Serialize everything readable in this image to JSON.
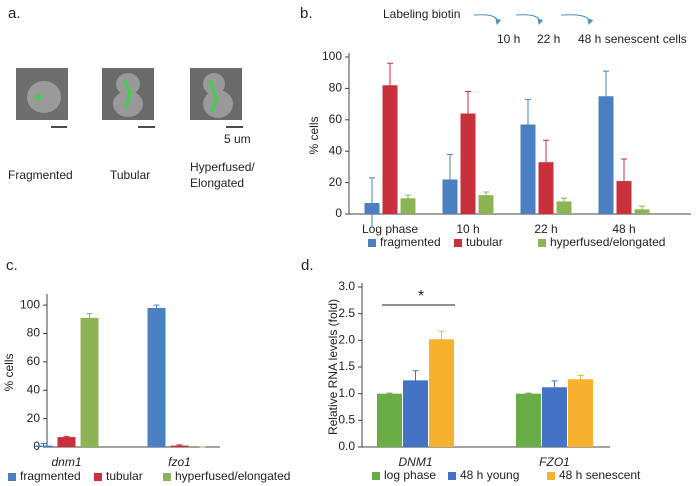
{
  "panel_a": {
    "label": "a.",
    "captions": [
      "Fragmented",
      "Tubular",
      "Hyperfused/",
      "Elongated"
    ],
    "scale_bar": "5 um"
  },
  "chart_data": [
    {
      "type": "bar",
      "panel_label": "b.",
      "ylabel": "% cells",
      "annotations": [
        "Labeling biotin",
        "10 h",
        "22 h",
        "48 h senescent cells"
      ],
      "categories": [
        "Log phase",
        "10 h",
        "22 h",
        "48 h"
      ],
      "series": [
        {
          "name": "fragmented",
          "color": "#4a7fc1",
          "values": [
            7,
            22,
            57,
            75
          ],
          "errors": [
            16,
            16,
            16,
            16
          ]
        },
        {
          "name": "tubular",
          "color": "#c8313c",
          "values": [
            82,
            64,
            33,
            21
          ],
          "errors": [
            14,
            14,
            14,
            14
          ]
        },
        {
          "name": "hyperfused/elongated",
          "color": "#8cb455",
          "values": [
            10,
            12,
            8,
            3
          ],
          "errors": [
            2,
            2,
            2,
            2
          ]
        }
      ],
      "ylim": [
        0,
        100
      ],
      "yticks": [
        0,
        20,
        40,
        60,
        80,
        100
      ]
    },
    {
      "type": "bar",
      "panel_label": "c.",
      "ylabel": "% cells",
      "categories": [
        "dnm1",
        "fzo1"
      ],
      "series": [
        {
          "name": "fragmented",
          "color": "#4a7fc1",
          "values": [
            1,
            98
          ],
          "errors": [
            1.5,
            2
          ]
        },
        {
          "name": "tubular",
          "color": "#c8313c",
          "values": [
            7,
            1
          ],
          "errors": [
            0.5,
            0.5
          ]
        },
        {
          "name": "hyperfused/elongated",
          "color": "#8cb455",
          "values": [
            91,
            0
          ],
          "errors": [
            3,
            0
          ]
        }
      ],
      "ylim": [
        0,
        105
      ],
      "yticks": [
        0,
        20,
        40,
        60,
        80,
        100
      ]
    },
    {
      "type": "bar",
      "panel_label": "d.",
      "ylabel": "Relative RNA levels (fold)",
      "annotations": [
        "*"
      ],
      "categories": [
        "DNM1",
        "FZO1"
      ],
      "series": [
        {
          "name": "log phase",
          "color": "#6aac46",
          "values": [
            1.0,
            1.0
          ],
          "errors": [
            0.01,
            0.01
          ]
        },
        {
          "name": "48 h young",
          "color": "#4472c4",
          "values": [
            1.25,
            1.12
          ],
          "errors": [
            0.18,
            0.12
          ]
        },
        {
          "name": "48 h senescent",
          "color": "#f7b12f",
          "values": [
            2.02,
            1.27
          ],
          "errors": [
            0.15,
            0.07
          ]
        }
      ],
      "ylim": [
        0,
        3.0
      ],
      "yticks": [
        {
          "value": 0,
          "label": "0.0"
        },
        {
          "value": 0.5,
          "label": "0.5"
        },
        {
          "value": 1,
          "label": "1.0"
        },
        {
          "value": 1.5,
          "label": "1.5"
        },
        {
          "value": 2,
          "label": "2.0"
        },
        {
          "value": 2.5,
          "label": "2.5"
        },
        {
          "value": 3,
          "label": "3.0"
        }
      ]
    }
  ]
}
